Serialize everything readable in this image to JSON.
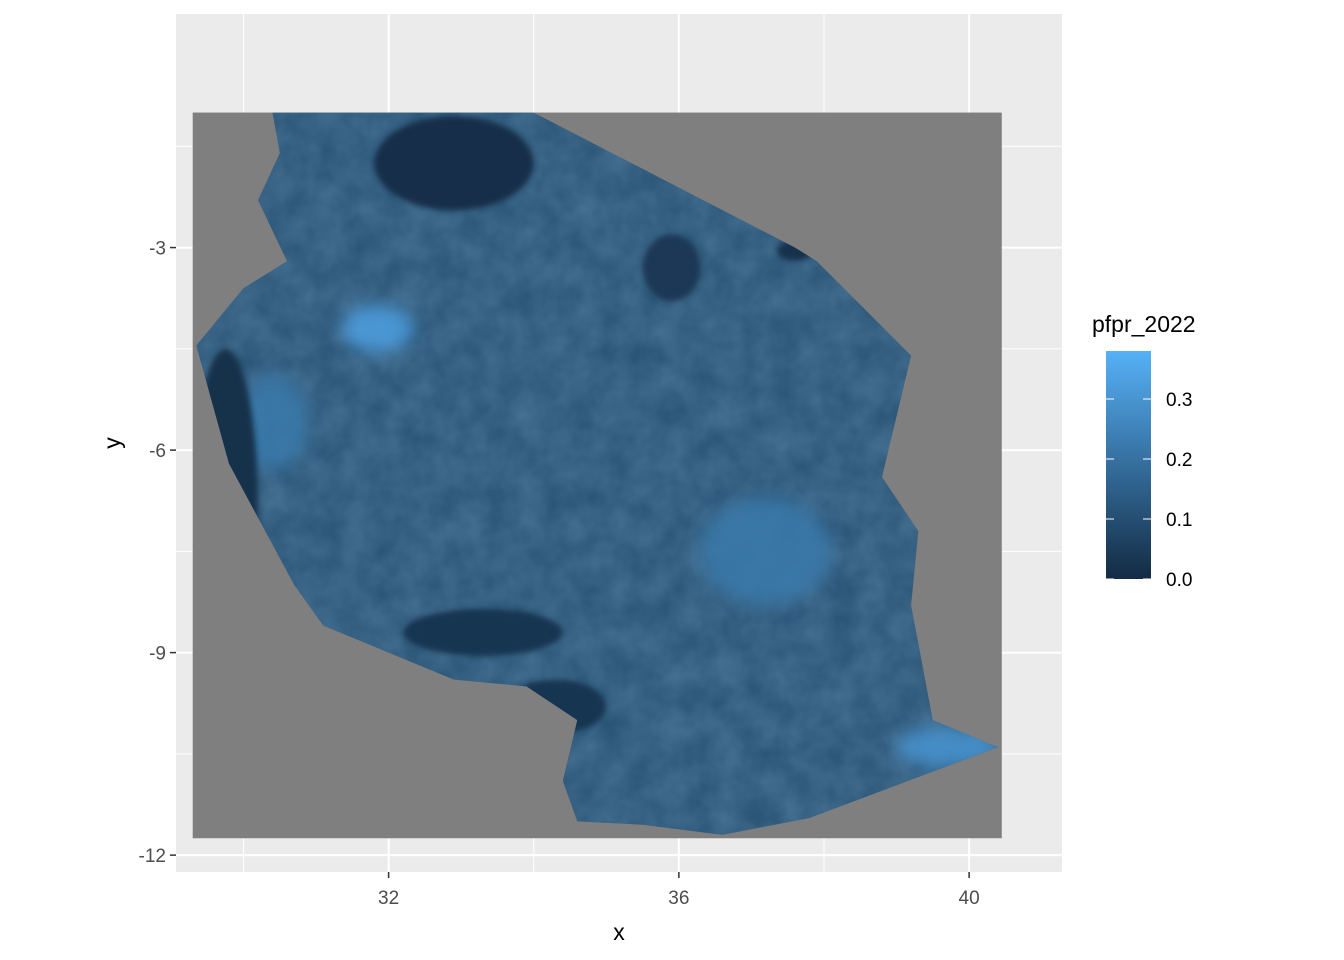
{
  "chart_data": {
    "type": "heatmap",
    "title": "",
    "xlabel": "x",
    "ylabel": "y",
    "xlim": [
      29.3,
      40.45
    ],
    "ylim": [
      -11.75,
      -1.0
    ],
    "x_ticks": [
      32,
      36,
      40
    ],
    "x_tick_labels": [
      "32",
      "36",
      "40"
    ],
    "y_ticks": [
      -3,
      -6,
      -9,
      -12
    ],
    "y_tick_labels": [
      "-3",
      "-6",
      "-9",
      "-12"
    ],
    "grid": true,
    "na_color": "#7f7f7f",
    "legend": {
      "title": "pfpr_2022",
      "placement": "right",
      "min": 0.0,
      "max": 0.38,
      "breaks": [
        0.0,
        0.1,
        0.2,
        0.3
      ],
      "break_labels": [
        "0.0",
        "0.1",
        "0.2",
        "0.3"
      ],
      "low_color": "#132b43",
      "high_color": "#56b1f7"
    },
    "region_outline": [
      [
        30.4,
        -1.0
      ],
      [
        34.0,
        -1.0
      ],
      [
        37.6,
        -3.0
      ],
      [
        37.9,
        -3.2
      ],
      [
        39.2,
        -4.6
      ],
      [
        38.8,
        -6.4
      ],
      [
        39.3,
        -7.2
      ],
      [
        39.2,
        -8.3
      ],
      [
        39.5,
        -10.0
      ],
      [
        40.4,
        -10.4
      ],
      [
        37.8,
        -11.45
      ],
      [
        36.6,
        -11.7
      ],
      [
        35.5,
        -11.55
      ],
      [
        34.6,
        -11.5
      ],
      [
        34.4,
        -10.9
      ],
      [
        34.6,
        -10.0
      ],
      [
        33.9,
        -9.5
      ],
      [
        32.9,
        -9.4
      ],
      [
        31.1,
        -8.6
      ],
      [
        30.7,
        -8.0
      ],
      [
        30.2,
        -7.0
      ],
      [
        29.8,
        -6.2
      ],
      [
        29.35,
        -4.45
      ],
      [
        30.0,
        -3.6
      ],
      [
        30.6,
        -3.2
      ],
      [
        30.2,
        -2.3
      ],
      [
        30.5,
        -1.6
      ],
      [
        30.4,
        -1.0
      ]
    ],
    "low_value_zones": [
      {
        "x": 32.9,
        "y": -1.75,
        "rx": 1.1,
        "ry": 0.7,
        "value": 0.01
      },
      {
        "x": 29.75,
        "y": -6.8,
        "rx": 0.45,
        "ry": 2.3,
        "value": 0.02
      },
      {
        "x": 33.3,
        "y": -8.7,
        "rx": 1.1,
        "ry": 0.35,
        "value": 0.03
      },
      {
        "x": 34.3,
        "y": -9.8,
        "rx": 0.7,
        "ry": 0.4,
        "value": 0.03
      },
      {
        "x": 35.9,
        "y": -3.3,
        "rx": 0.4,
        "ry": 0.5,
        "value": 0.04
      },
      {
        "x": 37.6,
        "y": -3.05,
        "rx": 0.25,
        "ry": 0.15,
        "value": 0.02
      }
    ],
    "high_value_zones": [
      {
        "x": 31.85,
        "y": -4.2,
        "rx": 0.5,
        "ry": 0.35,
        "value": 0.33
      },
      {
        "x": 39.7,
        "y": -10.4,
        "rx": 0.7,
        "ry": 0.3,
        "value": 0.3
      },
      {
        "x": 37.2,
        "y": -7.5,
        "rx": 0.9,
        "ry": 0.8,
        "value": 0.22
      },
      {
        "x": 30.4,
        "y": -5.6,
        "rx": 0.5,
        "ry": 0.7,
        "value": 0.22
      }
    ]
  }
}
